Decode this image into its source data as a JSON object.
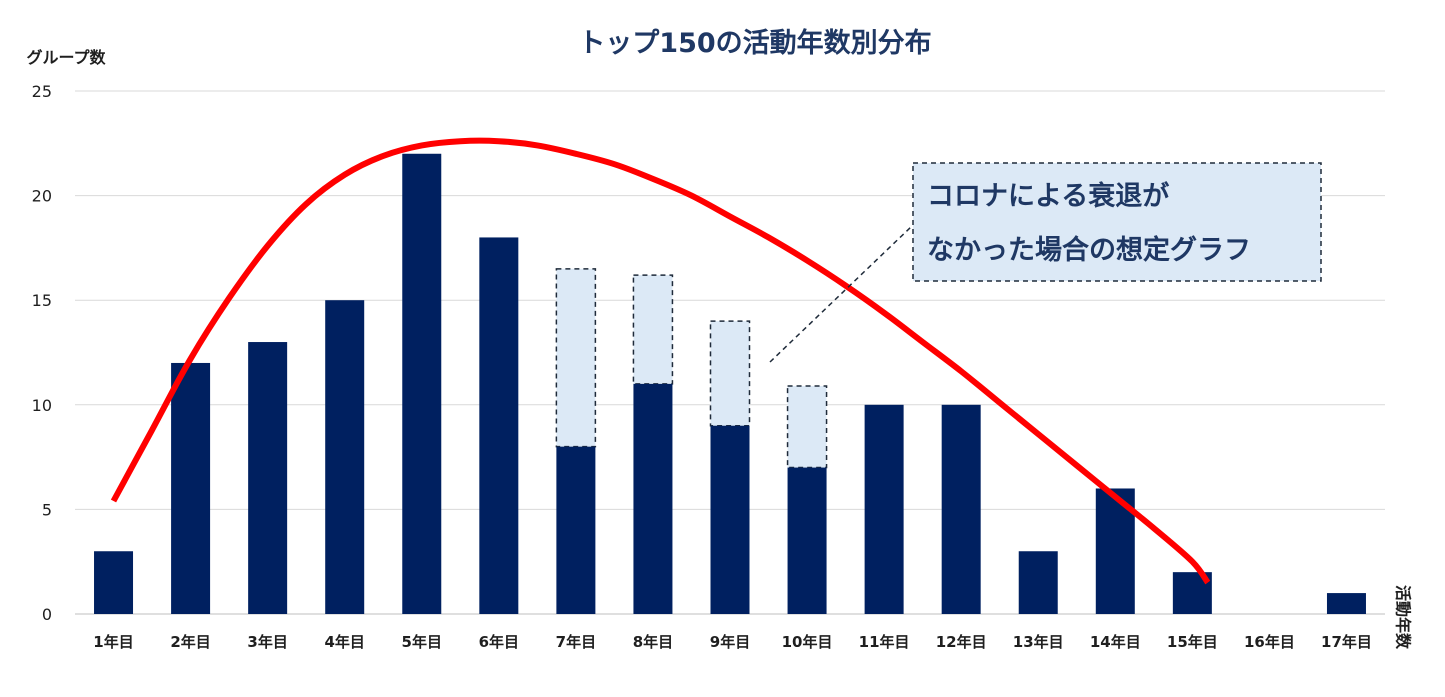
{
  "chart_data": {
    "type": "bar",
    "title": "トップ150の活動年数別分布",
    "ylabel": "グループ数",
    "xlabel": "活動年数",
    "ylim": [
      0,
      25
    ],
    "yticks": [
      0,
      5,
      10,
      15,
      20,
      25
    ],
    "grid": true,
    "categories": [
      "1年目",
      "2年目",
      "3年目",
      "4年目",
      "5年目",
      "6年目",
      "7年目",
      "8年目",
      "9年目",
      "10年目",
      "11年目",
      "12年目",
      "13年目",
      "14年目",
      "15年目",
      "16年目",
      "17年目"
    ],
    "series": [
      {
        "role": "actual",
        "values": [
          3,
          12,
          13,
          15,
          22,
          18,
          8,
          11,
          9,
          7,
          10,
          10,
          3,
          6,
          2,
          0,
          1
        ],
        "color": "#002060"
      },
      {
        "role": "hypothetical-extension",
        "values": [
          null,
          null,
          null,
          null,
          null,
          null,
          16.5,
          16.2,
          14,
          10.9,
          null,
          null,
          null,
          null,
          null,
          null,
          null
        ],
        "color": "#dce9f6"
      }
    ],
    "trend_curve": {
      "color": "#ff0000",
      "x": [
        1,
        1.5,
        2,
        2.5,
        3,
        3.5,
        4,
        4.5,
        5,
        5.5,
        6,
        6.5,
        7,
        7.5,
        8,
        8.5,
        9,
        9.5,
        10,
        10.5,
        11,
        11.5,
        12,
        12.5,
        13,
        13.5,
        14,
        14.5,
        15,
        15.2
      ],
      "y": [
        5.4,
        8.8,
        12.2,
        15.1,
        17.6,
        19.6,
        21.0,
        21.9,
        22.4,
        22.6,
        22.6,
        22.4,
        22.0,
        21.5,
        20.8,
        20.0,
        19.0,
        18.0,
        16.9,
        15.7,
        14.4,
        13.0,
        11.6,
        10.1,
        8.6,
        7.1,
        5.6,
        4.1,
        2.5,
        1.5
      ]
    },
    "annotation": {
      "lines": [
        "コロナによる衰退が",
        "なかった場合の想定グラフ"
      ],
      "bg": "#dce9f6",
      "text_color": "#1f3864"
    }
  }
}
